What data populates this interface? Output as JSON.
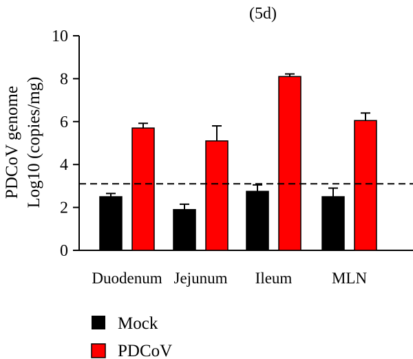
{
  "chart_data": {
    "type": "bar",
    "title": "(5d)",
    "ylabel_lines": [
      "PDCoV genome",
      "Log10 (copies/mg)"
    ],
    "categories": [
      "Duodenum",
      "Jejunum",
      "Ileum",
      "MLN"
    ],
    "series": [
      {
        "name": "Mock",
        "color": "#000000",
        "values": [
          2.5,
          1.9,
          2.75,
          2.5
        ],
        "errors": [
          0.15,
          0.25,
          0.3,
          0.4
        ]
      },
      {
        "name": "PDCoV",
        "color": "#ff0000",
        "values": [
          5.7,
          5.1,
          8.1,
          6.05
        ],
        "errors": [
          0.22,
          0.7,
          0.12,
          0.35
        ]
      }
    ],
    "ylim": [
      0,
      10
    ],
    "yticks": [
      "0",
      "2",
      "4",
      "6",
      "8",
      "10"
    ],
    "threshold_line": {
      "value": 3.1,
      "style": "dashed"
    },
    "legend_position": "bottom-left",
    "grid": false
  }
}
